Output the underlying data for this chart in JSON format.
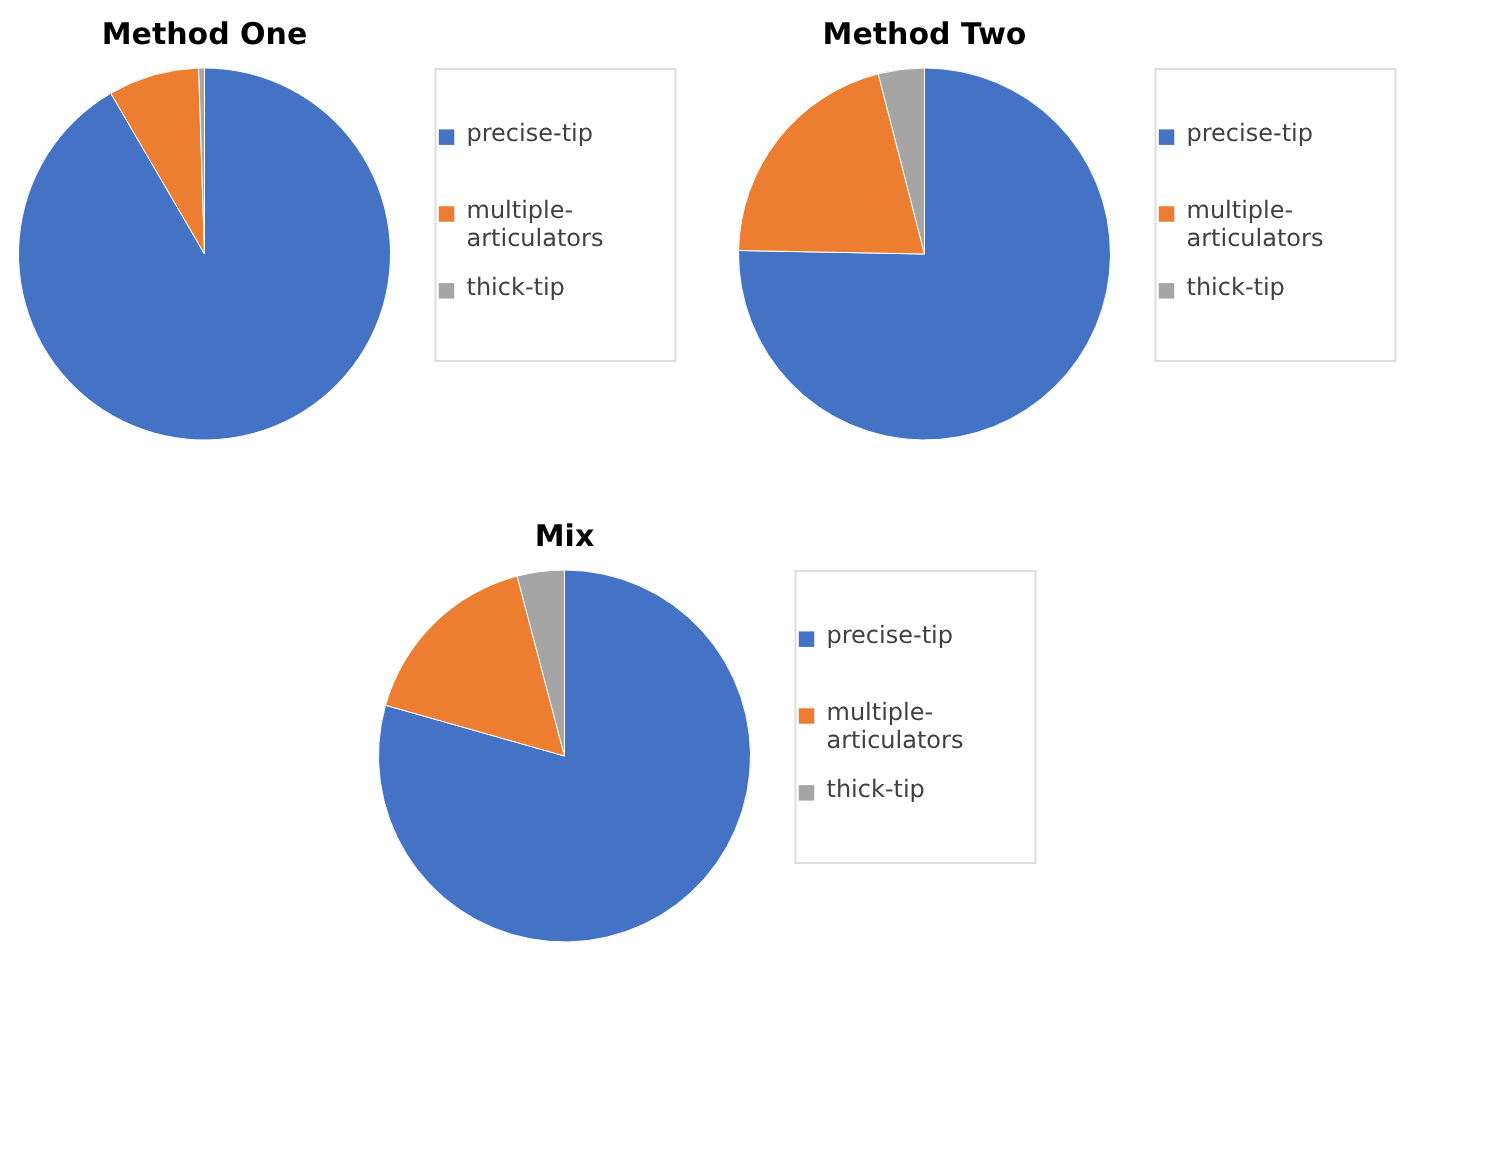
{
  "chart_data": [
    {
      "type": "pie",
      "title": "Method One",
      "categories": [
        "precise-tip",
        "multiple-articulators",
        "thick-tip"
      ],
      "values": [
        91.6,
        7.9,
        0.5
      ],
      "colors": [
        "#4472c4",
        "#ed7d31",
        "#a5a5a5"
      ],
      "legend": "right"
    },
    {
      "type": "pie",
      "title": "Method Two",
      "categories": [
        "precise-tip",
        "multiple-articulators",
        "thick-tip"
      ],
      "values": [
        75.3,
        20.7,
        4.0
      ],
      "colors": [
        "#4472c4",
        "#ed7d31",
        "#a5a5a5"
      ],
      "legend": "right"
    },
    {
      "type": "pie",
      "title": "Mix",
      "categories": [
        "precise-tip",
        "multiple-articulators",
        "thick-tip"
      ],
      "values": [
        79.4,
        16.5,
        4.1
      ],
      "colors": [
        "#4472c4",
        "#ed7d31",
        "#a5a5a5"
      ],
      "legend": "right"
    }
  ]
}
